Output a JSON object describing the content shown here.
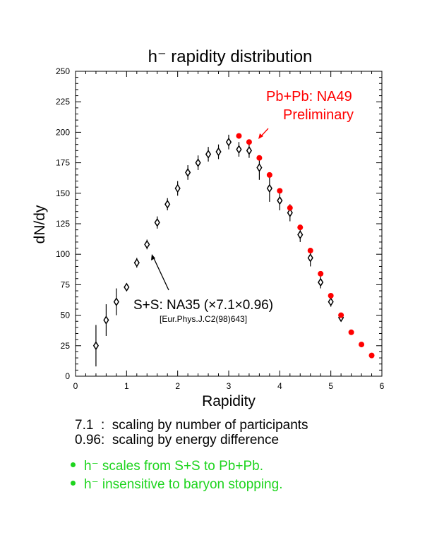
{
  "chart_data": {
    "type": "scatter",
    "title": "h⁻ rapidity distribution",
    "xlabel": "Rapidity",
    "ylabel": "dN/dy",
    "xlim": [
      0,
      6
    ],
    "ylim": [
      0,
      250
    ],
    "x_ticks": [
      "0",
      "1",
      "2",
      "3",
      "4",
      "5",
      "6"
    ],
    "y_ticks": [
      "0",
      "25",
      "50",
      "75",
      "100",
      "125",
      "150",
      "175",
      "200",
      "225",
      "250"
    ],
    "grid": false,
    "series": [
      {
        "name": "S+S: NA35 (×7.1×0.96)",
        "marker": "open-diamond",
        "color": "#000000",
        "x": [
          0.4,
          0.6,
          0.8,
          1.0,
          1.2,
          1.4,
          1.6,
          1.8,
          2.0,
          2.2,
          2.4,
          2.6,
          2.8,
          3.0,
          3.2,
          3.4,
          3.6,
          3.8,
          4.0,
          4.2,
          4.4,
          4.6,
          4.8,
          5.0,
          5.2
        ],
        "y": [
          25,
          46,
          61,
          73,
          93,
          108,
          126,
          141,
          154,
          167,
          175,
          182,
          184,
          192,
          186,
          185,
          171,
          154,
          144,
          134,
          116,
          97,
          77,
          61,
          48
        ],
        "err": [
          17,
          13,
          11,
          3,
          4,
          4,
          5,
          5,
          6,
          6,
          6,
          6,
          6,
          6,
          6,
          6,
          10,
          11,
          8,
          7,
          6,
          7,
          5,
          4,
          3
        ]
      },
      {
        "name": "Pb+Pb: NA49 Preliminary",
        "marker": "filled-circle",
        "color": "#ff0000",
        "x": [
          3.2,
          3.4,
          3.6,
          3.8,
          4.0,
          4.2,
          4.4,
          4.6,
          4.8,
          5.0,
          5.2,
          5.4,
          5.6,
          5.8
        ],
        "y": [
          197,
          192,
          179,
          165,
          152,
          138,
          122,
          103,
          84,
          66,
          50,
          36,
          26,
          17
        ]
      }
    ],
    "annotations": {
      "pbpb_line1": "Pb+Pb: NA49",
      "pbpb_line2": "Preliminary",
      "ss_label": "S+S: NA35 (×7.1×0.96)",
      "ss_ref": "[Eur.Phys.J.C2(98)643]"
    }
  },
  "notes": [
    "7.1  :  scaling by number of participants",
    "0.96:  scaling by energy difference"
  ],
  "bullets": [
    "h⁻ scales from S+S to Pb+Pb.",
    "h⁻ insensitive to baryon stopping."
  ],
  "colors": {
    "pbpb": "#ff0000",
    "ss": "#000000",
    "bullets": "#1ed41e"
  }
}
